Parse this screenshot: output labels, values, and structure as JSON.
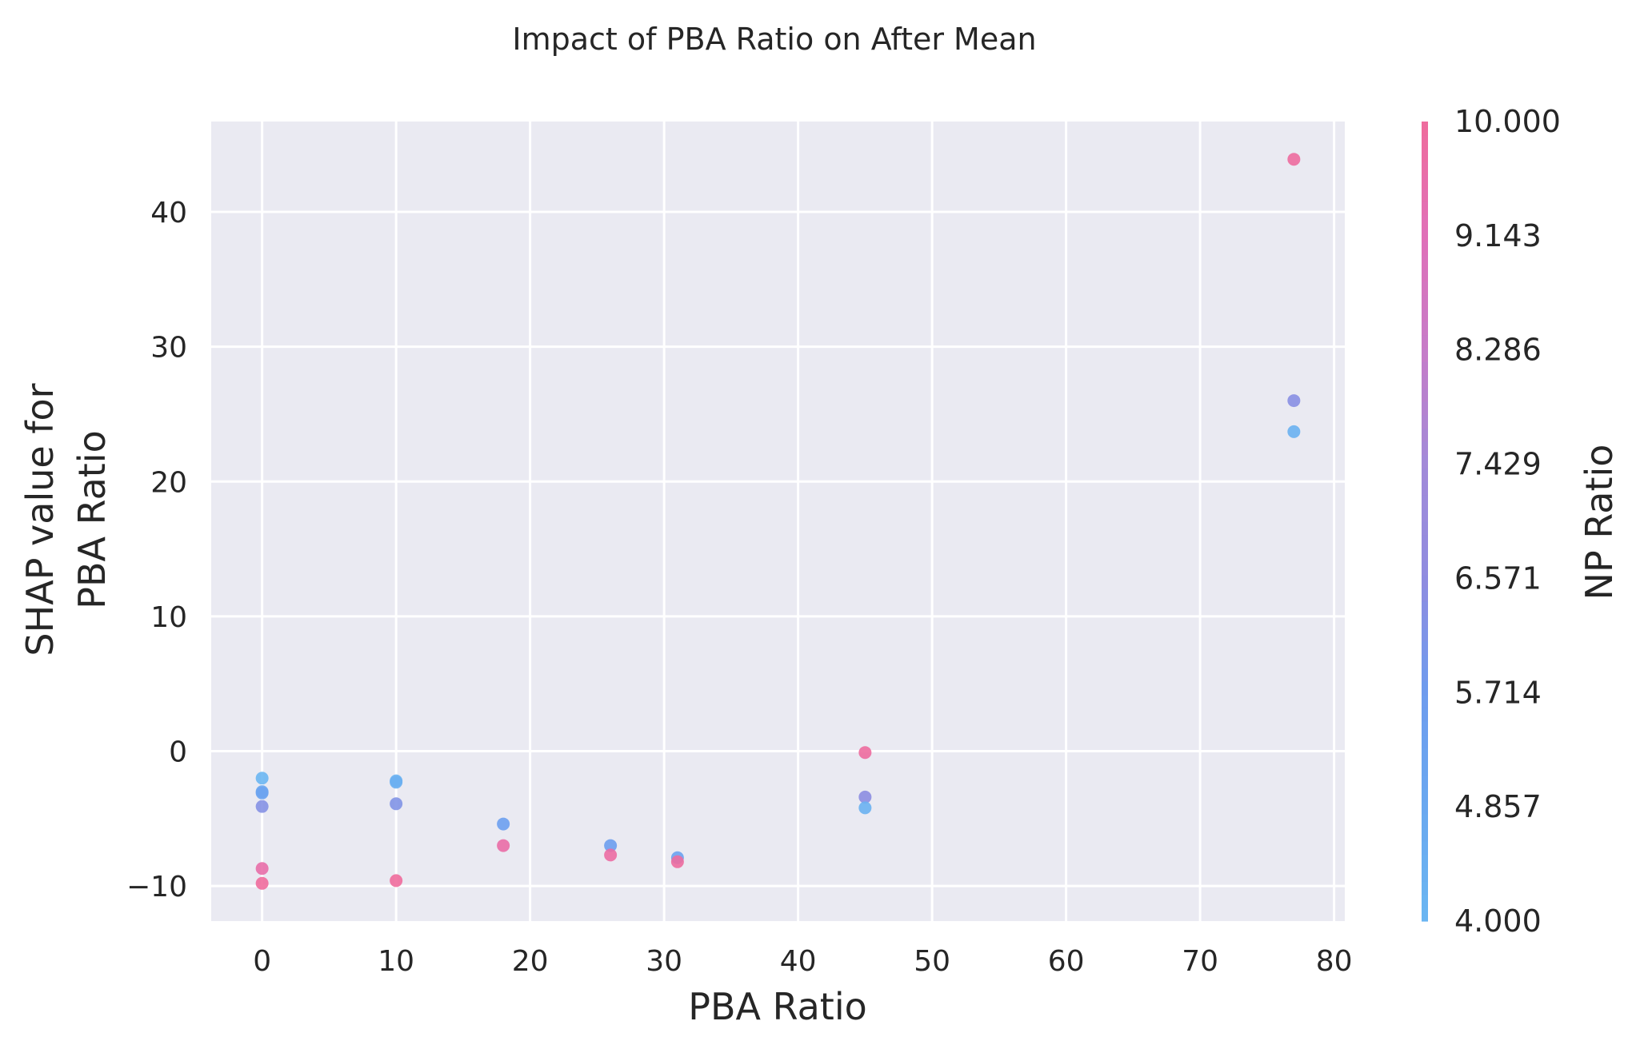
{
  "chart_data": {
    "type": "scatter",
    "title": "Impact of PBA Ratio on After Mean",
    "xlabel": "PBA Ratio",
    "ylabel_lines": [
      "SHAP value for",
      "PBA Ratio"
    ],
    "xlim": [
      -3.8,
      80.8
    ],
    "ylim": [
      -12.6,
      46.7
    ],
    "xticks": [
      0,
      10,
      20,
      30,
      40,
      50,
      60,
      70,
      80
    ],
    "yticks": [
      -10,
      0,
      10,
      20,
      30,
      40
    ],
    "ytick_labels": [
      "−10",
      "0",
      "10",
      "20",
      "30",
      "40"
    ],
    "grid": true,
    "colorbar": {
      "label": "NP Ratio",
      "range": [
        4.0,
        10.0
      ],
      "tick_labels": [
        "4.000",
        "4.857",
        "5.714",
        "6.571",
        "7.429",
        "8.286",
        "9.143",
        "10.000"
      ],
      "colors": [
        "#6ab6f2",
        "#6aa8f0",
        "#6e9cee",
        "#8f8ce0",
        "#a28ad8",
        "#c67cc8",
        "#e070b8",
        "#ef6c9c"
      ]
    },
    "points": [
      {
        "x": 0,
        "y": -2.0,
        "np": 4.0
      },
      {
        "x": 0,
        "y": -3.0,
        "np": 4.8
      },
      {
        "x": 0,
        "y": -3.1,
        "np": 5.2
      },
      {
        "x": 0,
        "y": -4.1,
        "np": 6.3
      },
      {
        "x": 0,
        "y": -8.7,
        "np": 9.6
      },
      {
        "x": 0,
        "y": -9.8,
        "np": 10.0
      },
      {
        "x": 10,
        "y": -2.2,
        "np": 4.2
      },
      {
        "x": 10,
        "y": -2.3,
        "np": 4.4
      },
      {
        "x": 10,
        "y": -3.9,
        "np": 6.2
      },
      {
        "x": 10,
        "y": -9.6,
        "np": 10.0
      },
      {
        "x": 18,
        "y": -5.4,
        "np": 5.4
      },
      {
        "x": 18,
        "y": -7.0,
        "np": 9.7
      },
      {
        "x": 26,
        "y": -7.0,
        "np": 5.6
      },
      {
        "x": 26,
        "y": -7.7,
        "np": 9.8
      },
      {
        "x": 31,
        "y": -7.9,
        "np": 5.3
      },
      {
        "x": 31,
        "y": -8.2,
        "np": 9.9
      },
      {
        "x": 45,
        "y": -0.1,
        "np": 9.9
      },
      {
        "x": 45,
        "y": -3.4,
        "np": 6.5
      },
      {
        "x": 45,
        "y": -4.2,
        "np": 4.3
      },
      {
        "x": 77,
        "y": 43.9,
        "np": 9.9
      },
      {
        "x": 77,
        "y": 26.0,
        "np": 6.4
      },
      {
        "x": 77,
        "y": 23.7,
        "np": 4.3
      }
    ]
  }
}
